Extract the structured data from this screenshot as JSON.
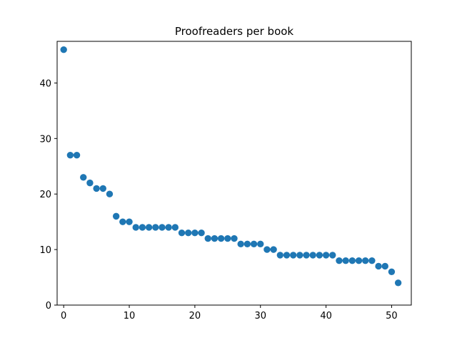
{
  "chart_data": {
    "type": "scatter",
    "title": "Proofreaders per book",
    "xlabel": "",
    "ylabel": "",
    "xlim": [
      -1,
      53
    ],
    "ylim": [
      0,
      47.5
    ],
    "xticks": [
      0,
      10,
      20,
      30,
      40,
      50
    ],
    "yticks": [
      0,
      10,
      20,
      30,
      40
    ],
    "xtick_labels": [
      "0",
      "10",
      "20",
      "30",
      "40",
      "50"
    ],
    "ytick_labels": [
      "0",
      "10",
      "20",
      "30",
      "40"
    ],
    "grid": false,
    "marker_color": "#1f77b4",
    "x": [
      0,
      1,
      2,
      3,
      4,
      5,
      6,
      7,
      8,
      9,
      10,
      11,
      12,
      13,
      14,
      15,
      16,
      17,
      18,
      19,
      20,
      21,
      22,
      23,
      24,
      25,
      26,
      27,
      28,
      29,
      30,
      31,
      32,
      33,
      34,
      35,
      36,
      37,
      38,
      39,
      40,
      41,
      42,
      43,
      44,
      45,
      46,
      47,
      48,
      49,
      50,
      51
    ],
    "y": [
      46,
      27,
      27,
      23,
      22,
      21,
      21,
      20,
      16,
      15,
      15,
      14,
      14,
      14,
      14,
      14,
      14,
      14,
      13,
      13,
      13,
      13,
      12,
      12,
      12,
      12,
      12,
      11,
      11,
      11,
      11,
      10,
      10,
      9,
      9,
      9,
      9,
      9,
      9,
      9,
      9,
      9,
      8,
      8,
      8,
      8,
      8,
      8,
      7,
      7,
      6,
      4
    ]
  }
}
